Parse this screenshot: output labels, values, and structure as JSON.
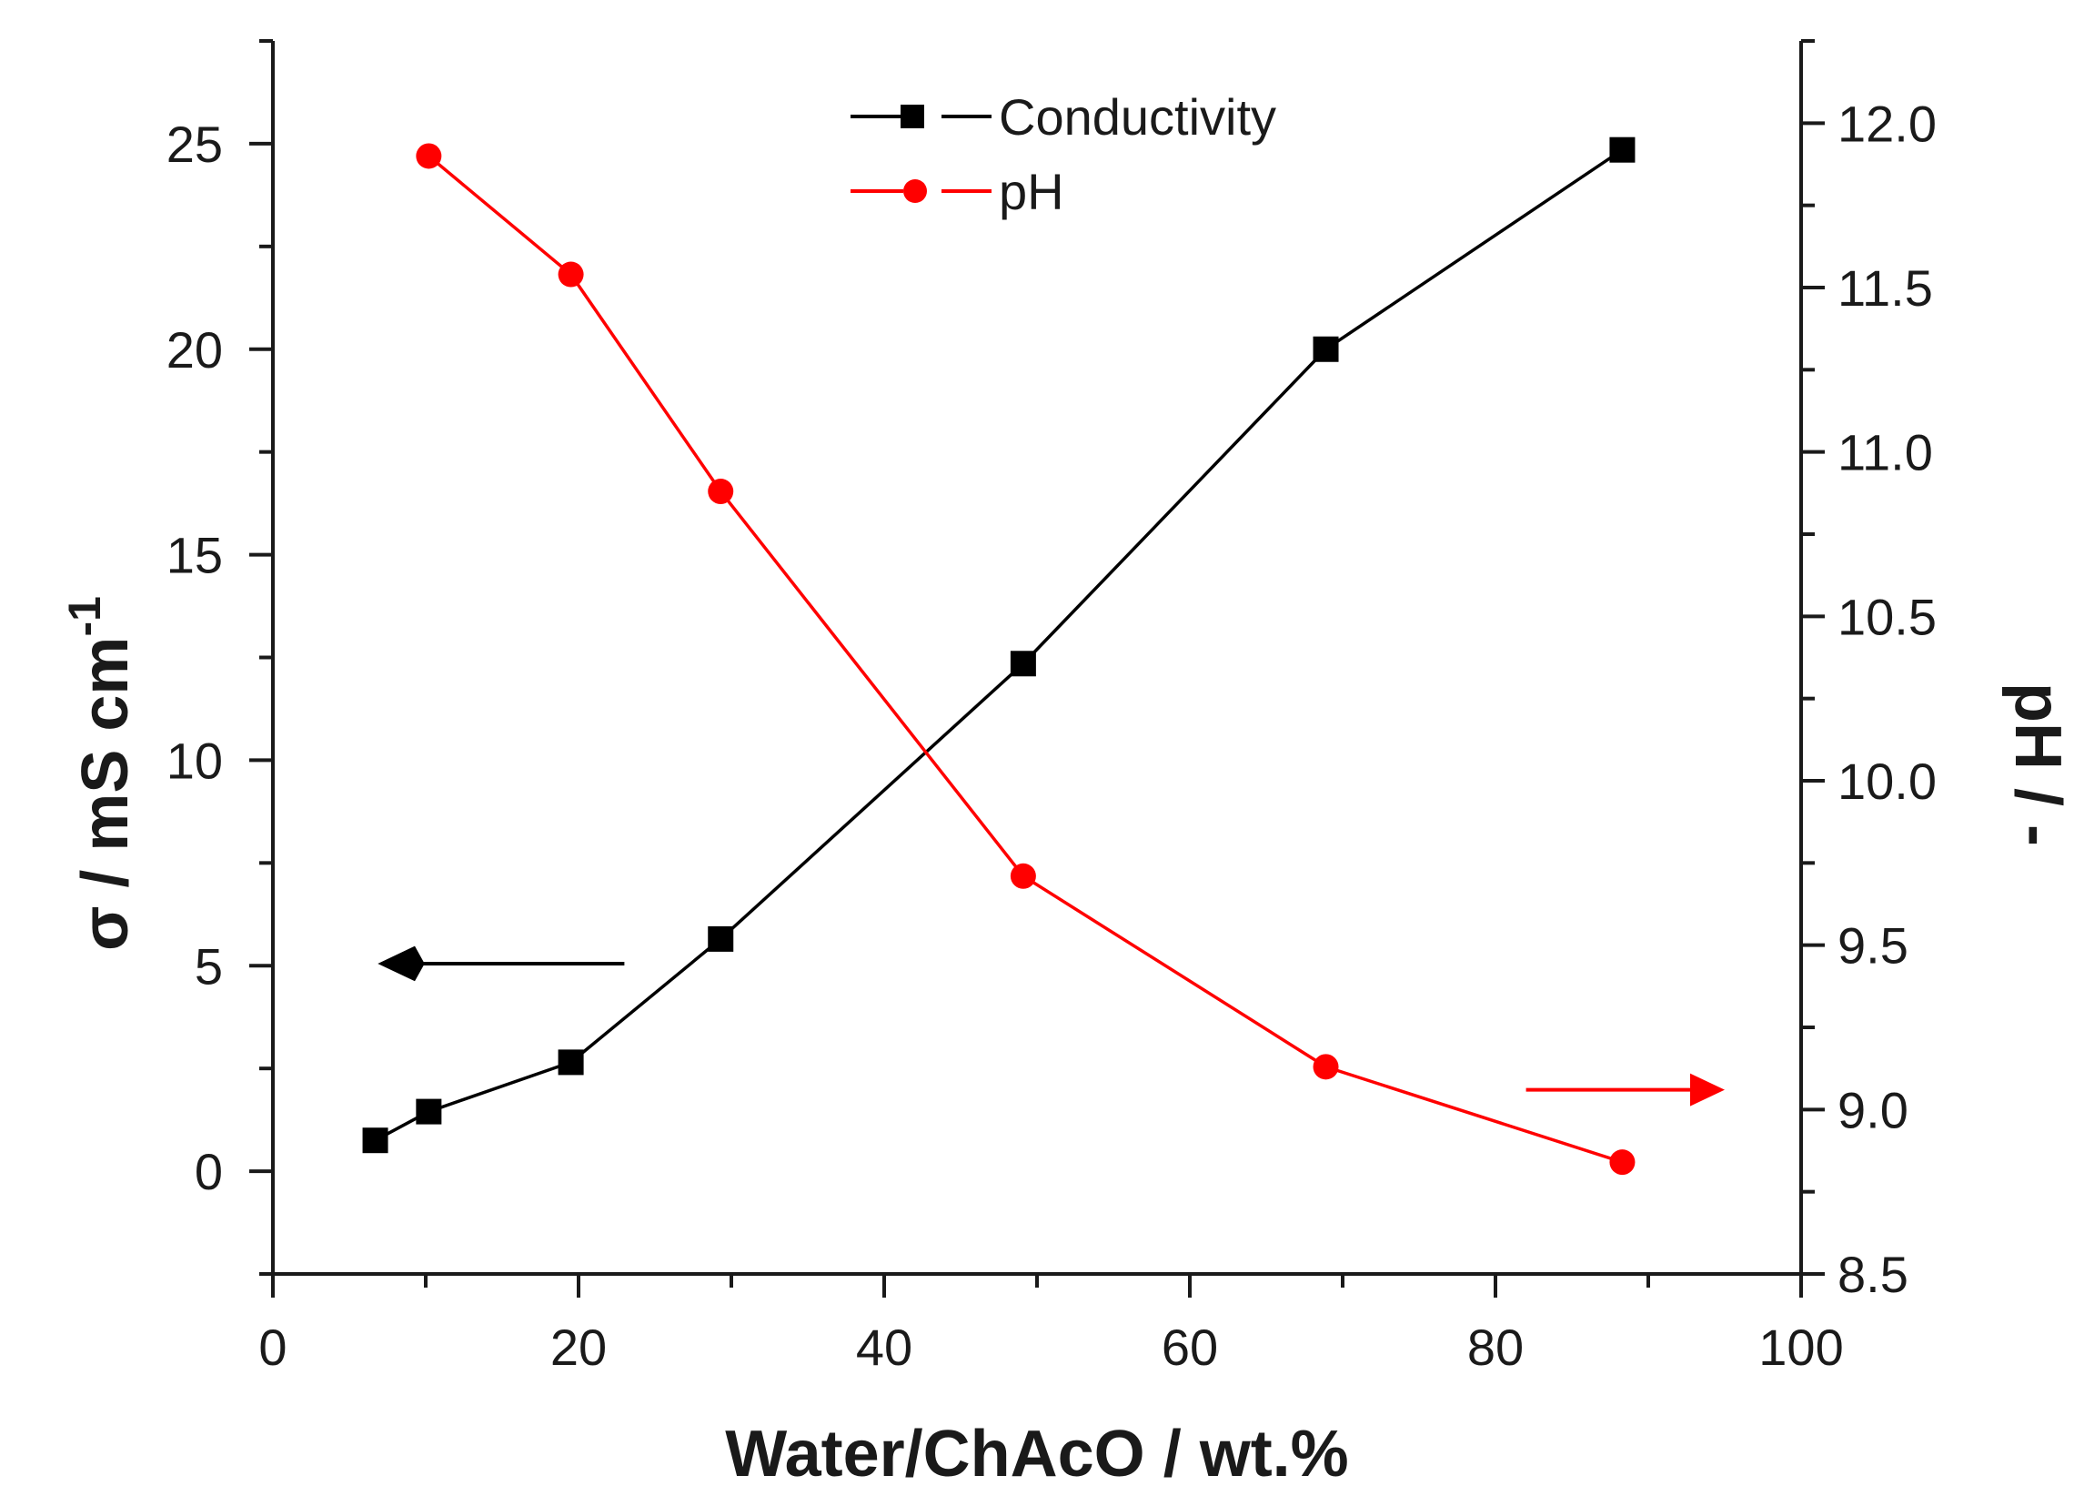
{
  "chart_data": {
    "type": "line",
    "title": "",
    "xlabel": "Water/ChAcO / wt.%",
    "ylabel_left": "σ / mS cm",
    "ylabel_left_superscript": "-1",
    "ylabel_right": "pH / -",
    "xlim": [
      0,
      100
    ],
    "ylim_left": [
      -2.5,
      27.5
    ],
    "ylim_right": [
      8.5,
      12.25
    ],
    "x_ticks": [
      "0",
      "20",
      "40",
      "60",
      "80",
      "100"
    ],
    "y_left_ticks": [
      "0",
      "5",
      "10",
      "15",
      "20",
      "25"
    ],
    "y_right_ticks": [
      "8.5",
      "9.0",
      "9.5",
      "10.0",
      "10.5",
      "11.0",
      "11.5",
      "12.0"
    ],
    "grid": false,
    "legend_position": "top-center",
    "series": [
      {
        "name": "Conductivity",
        "axis": "left",
        "color": "#000000",
        "marker": "square",
        "points": [
          {
            "x": 6.7,
            "y": 0.75
          },
          {
            "x": 10.2,
            "y": 1.45
          },
          {
            "x": 19.5,
            "y": 2.65
          },
          {
            "x": 29.3,
            "y": 5.65
          },
          {
            "x": 49.1,
            "y": 12.35
          },
          {
            "x": 68.9,
            "y": 20.0
          },
          {
            "x": 88.3,
            "y": 24.85
          }
        ]
      },
      {
        "name": "pH",
        "axis": "right",
        "color": "#ff0000",
        "marker": "circle",
        "points": [
          {
            "x": 10.2,
            "y": 11.9
          },
          {
            "x": 19.5,
            "y": 11.54
          },
          {
            "x": 29.3,
            "y": 10.88
          },
          {
            "x": 49.1,
            "y": 9.71
          },
          {
            "x": 68.9,
            "y": 9.13
          },
          {
            "x": 88.3,
            "y": 8.84
          }
        ]
      }
    ],
    "annotations": [
      {
        "type": "arrow",
        "direction": "left",
        "target_axis": "left",
        "color": "#000000",
        "x_start": 23,
        "x_end": 7,
        "y": 5.05,
        "y_axis": "left"
      },
      {
        "type": "arrow",
        "direction": "right",
        "target_axis": "right",
        "color": "#ff0000",
        "x_start": 82,
        "x_end": 95,
        "y": 9.06,
        "y_axis": "right"
      }
    ]
  }
}
